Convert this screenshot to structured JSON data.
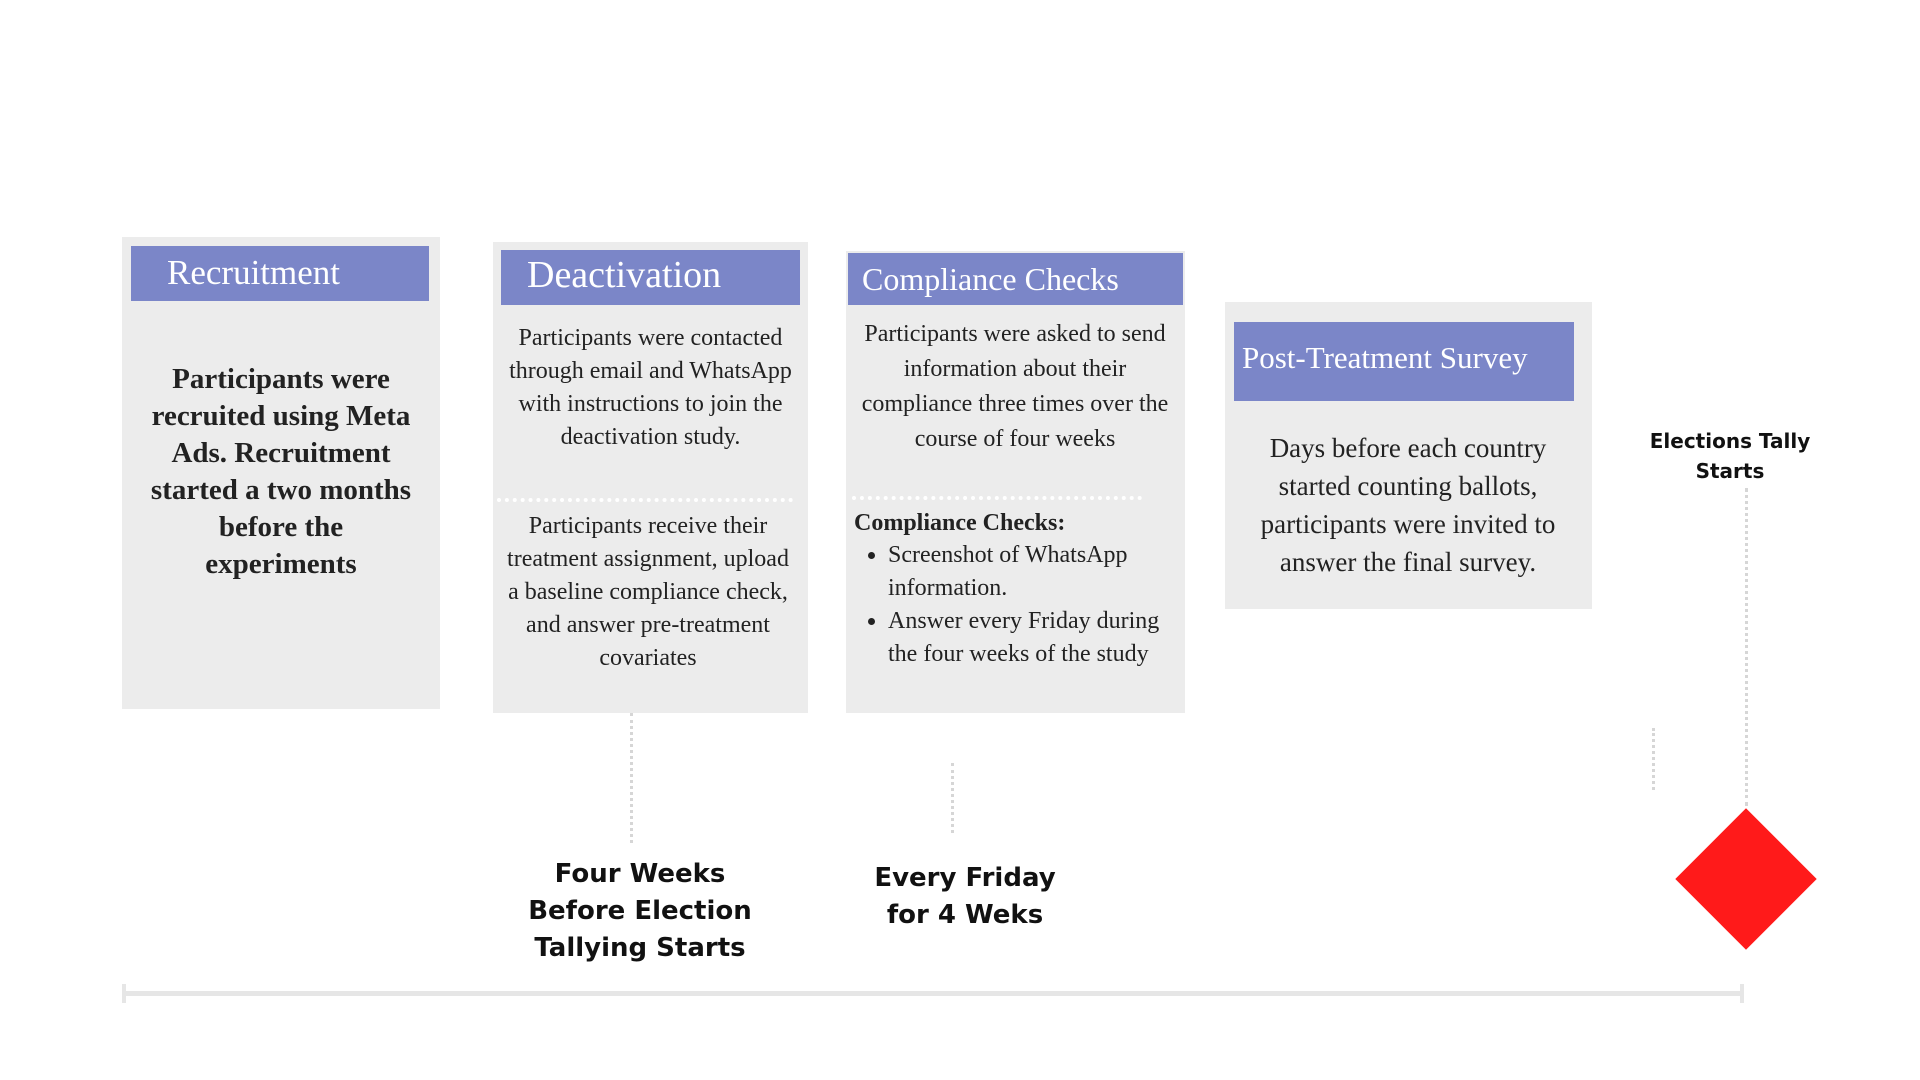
{
  "cards": {
    "recruitment": {
      "title": "Recruitment",
      "body": "Participants were recruited using Meta Ads. Recruitment started a two months before the experiments"
    },
    "deactivation": {
      "title": "Deactivation",
      "body_top": "Participants were contacted through email and WhatsApp with instructions to join the deactivation study.",
      "body_bottom": "Participants receive their treatment assignment, upload a baseline compliance check, and answer pre-treatment covariates"
    },
    "compliance": {
      "title": "Compliance Checks",
      "body_top": "Participants were asked to send information about their compliance three times over the course of four weeks",
      "list_heading": "Compliance Checks:",
      "list": [
        "Screenshot of WhatsApp information.",
        "Answer every Friday during the four weeks of the study"
      ]
    },
    "post_survey": {
      "title": "Post-Treatment Survey",
      "body": "Days before each country started counting ballots, participants were invited to answer the final survey."
    }
  },
  "timeline": {
    "marker_label": "Elections Tally Starts",
    "marker_color": "#ff1a1a",
    "captions": {
      "deactivation": "Four Weeks Before Election Tallying Starts",
      "compliance": "Every Friday for 4 Weks"
    }
  },
  "colors": {
    "title_bar": "#7b86c8",
    "card_bg": "#ececec"
  }
}
